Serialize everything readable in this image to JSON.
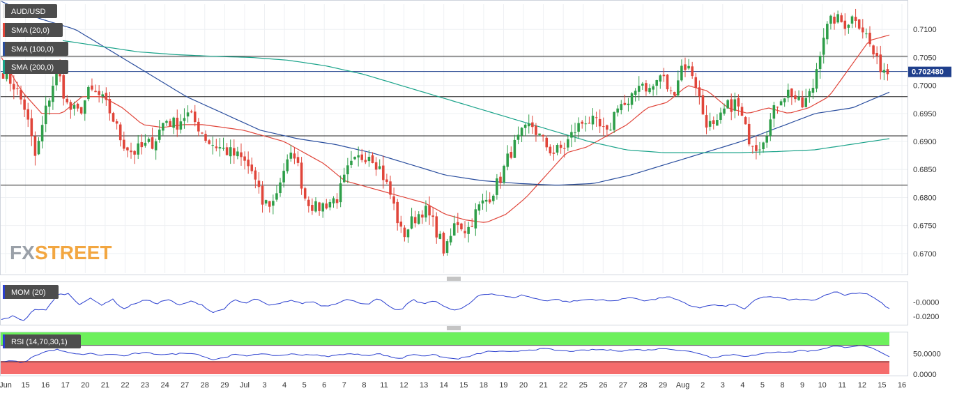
{
  "symbol": "AUD/USD",
  "legends": {
    "sma20": "SMA (20,0)",
    "sma100": "SMA (100,0)",
    "sma200": "SMA (200,0)",
    "mom": "MOM (20)",
    "rsi": "RSI (14,70,30,1)"
  },
  "logo": {
    "fx": "FX",
    "street": "STREET"
  },
  "colors": {
    "up": "#2e9e49",
    "down": "#e0453a",
    "sma20": "#e0453a",
    "sma100": "#2a4e9e",
    "sma200": "#1aa38a",
    "mom": "#2a3fcf",
    "rsi": "#2a3fcf",
    "rsi_over": "#6cf05c",
    "rsi_under": "#f56c6c",
    "price_tag": "#1f3f8c"
  },
  "chart_data": [
    {
      "type": "candlestick",
      "title": "AUD/USD",
      "x_ticks": [
        "Jun",
        "15",
        "16",
        "17",
        "20",
        "21",
        "22",
        "23",
        "24",
        "27",
        "28",
        "29",
        "Jul",
        "3",
        "4",
        "5",
        "6",
        "7",
        "8",
        "11",
        "12",
        "13",
        "14",
        "15",
        "18",
        "19",
        "20",
        "21",
        "22",
        "25",
        "26",
        "27",
        "28",
        "29",
        "Aug",
        "2",
        "3",
        "4",
        "5",
        "8",
        "9",
        "10",
        "11",
        "12",
        "15",
        "16"
      ],
      "y_ticks": [
        "0.7100",
        "0.7050",
        "0.7000",
        "0.6950",
        "0.6900",
        "0.6850",
        "0.6800",
        "0.6750",
        "0.6700"
      ],
      "ylim": [
        0.6665,
        0.7145
      ],
      "last_price": "0.702480",
      "horizontal_levels": [
        0.7052,
        0.698,
        0.691,
        0.6822
      ],
      "ohlc_anchors": [
        0.7025,
        0.7,
        0.696,
        0.687,
        0.696,
        0.703,
        0.696,
        0.695,
        0.699,
        0.698,
        0.695,
        0.69,
        0.688,
        0.689,
        0.69,
        0.694,
        0.693,
        0.695,
        0.693,
        0.69,
        0.689,
        0.688,
        0.687,
        0.685,
        0.679,
        0.679,
        0.685,
        0.688,
        0.68,
        0.678,
        0.679,
        0.68,
        0.685,
        0.687,
        0.688,
        0.685,
        0.68,
        0.673,
        0.676,
        0.678,
        0.675,
        0.67,
        0.676,
        0.674,
        0.678,
        0.68,
        0.683,
        0.688,
        0.691,
        0.693,
        0.69,
        0.688,
        0.689,
        0.692,
        0.694,
        0.693,
        0.691,
        0.697,
        0.696,
        0.701,
        0.699,
        0.702,
        0.698,
        0.704,
        0.702,
        0.694,
        0.692,
        0.696,
        0.697,
        0.691,
        0.689,
        0.693,
        0.698,
        0.699,
        0.696,
        0.699,
        0.709,
        0.712,
        0.711,
        0.7125,
        0.709,
        0.704,
        0.7025
      ],
      "sma20_anchors": [
        0.705,
        0.699,
        0.695,
        0.695,
        0.698,
        0.698,
        0.696,
        0.693,
        0.6925,
        0.693,
        0.693,
        0.6925,
        0.692,
        0.691,
        0.69,
        0.688,
        0.686,
        0.683,
        0.682,
        0.681,
        0.68,
        0.679,
        0.677,
        0.676,
        0.6755,
        0.677,
        0.68,
        0.684,
        0.688,
        0.689,
        0.691,
        0.693,
        0.696,
        0.697,
        0.7,
        0.699,
        0.696,
        0.695,
        0.696,
        0.695,
        0.696,
        0.698,
        0.703,
        0.708,
        0.709
      ],
      "sma100_anchors": [
        0.715,
        0.712,
        0.71,
        0.706,
        0.702,
        0.698,
        0.695,
        0.692,
        0.6905,
        0.6895,
        0.688,
        0.686,
        0.684,
        0.683,
        0.6825,
        0.6822,
        0.6825,
        0.684,
        0.686,
        0.688,
        0.69,
        0.6925,
        0.695,
        0.696,
        0.6988
      ],
      "sma200_anchors": [
        0.708,
        0.707,
        0.706,
        0.7055,
        0.7052,
        0.705,
        0.7045,
        0.7035,
        0.702,
        0.7,
        0.698,
        0.696,
        0.694,
        0.692,
        0.69,
        0.6885,
        0.688,
        0.688,
        0.688,
        0.6882,
        0.6885,
        0.6895,
        0.6905
      ]
    },
    {
      "type": "line",
      "title": "MOM (20)",
      "y_ticks": [
        "-0.0000",
        "-0.0200"
      ],
      "ylim": [
        -0.03,
        0.025
      ],
      "series": [
        {
          "values": [
            -0.025,
            -0.02,
            -0.026,
            -0.01,
            -0.012,
            0.01,
            0.012,
            -0.003,
            0.005,
            -0.004,
            0.004,
            -0.01,
            -0.002,
            0.003,
            -0.002,
            0.004,
            -0.005,
            0.001,
            -0.003,
            -0.015,
            -0.01,
            0.003,
            -0.002,
            0.005,
            -0.005,
            -0.003,
            0.003,
            -0.002,
            0.001,
            -0.006,
            -0.003,
            0.004,
            0.0,
            -0.003,
            0.005,
            -0.008,
            -0.012,
            0.004,
            -0.003,
            0.003,
            -0.008,
            -0.012,
            -0.005,
            0.01,
            0.012,
            0.009,
            0.006,
            0.01,
            0.005,
            0.002,
            0.004,
            0.0,
            0.002,
            0.004,
            0.003,
            0.001,
            0.005,
            0.006,
            0.002,
            0.004,
            0.008,
            0.002,
            -0.005,
            -0.008,
            -0.004,
            -0.006,
            -0.003,
            -0.01,
            0.004,
            0.008,
            0.006,
            0.003,
            0.004,
            0.002,
            0.008,
            0.015,
            0.01,
            0.013,
            0.012,
            0.002,
            -0.01
          ]
        }
      ]
    },
    {
      "type": "line",
      "title": "RSI (14,70,30,1)",
      "y_ticks": [
        "50.0000",
        "0.0000"
      ],
      "ylim": [
        0,
        100
      ],
      "series": [
        {
          "values": [
            30,
            32,
            28,
            45,
            55,
            60,
            52,
            48,
            50,
            46,
            49,
            44,
            50,
            52,
            49,
            48,
            50,
            52,
            46,
            35,
            40,
            48,
            44,
            50,
            47,
            45,
            49,
            47,
            48,
            43,
            45,
            50,
            48,
            46,
            50,
            42,
            38,
            49,
            45,
            47,
            40,
            37,
            42,
            50,
            56,
            55,
            54,
            58,
            60,
            62,
            58,
            56,
            57,
            59,
            60,
            58,
            57,
            60,
            58,
            61,
            63,
            58,
            55,
            50,
            40,
            45,
            48,
            44,
            46,
            52,
            55,
            53,
            58,
            56,
            62,
            68,
            66,
            69,
            68,
            55,
            42
          ]
        }
      ]
    }
  ]
}
